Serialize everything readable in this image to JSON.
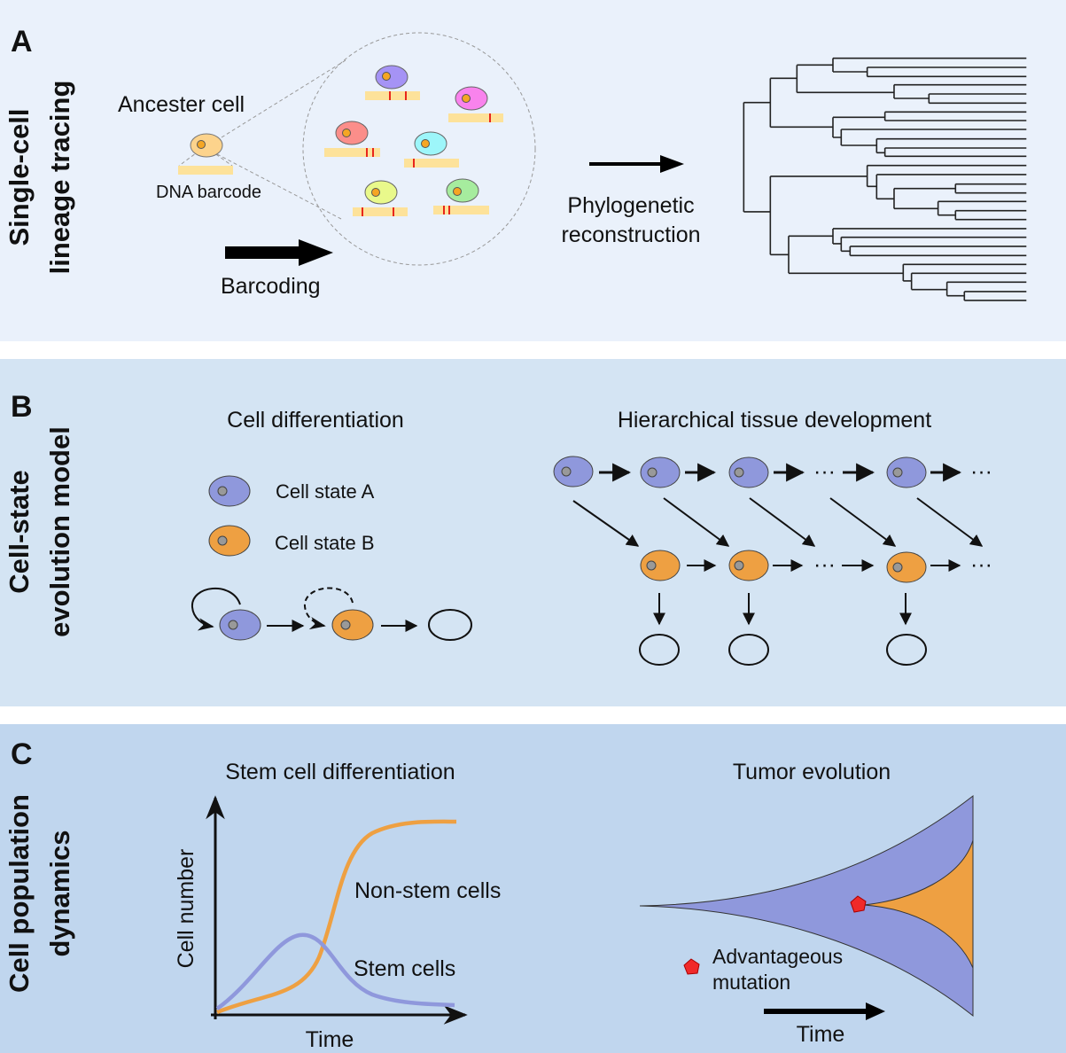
{
  "colors": {
    "panel_a_bg": "#eaf1fb",
    "panel_b_bg": "#d4e4f3",
    "panel_c_bg": "#c0d6ee",
    "cell_state_a": "#8f98dc",
    "cell_state_b": "#eea042",
    "mutation": "#f02a2a",
    "barcode": "#fde29a",
    "barcode_mark": "#e8261c"
  },
  "panel_a": {
    "letter": "A",
    "side_title_line1": "Single-cell",
    "side_title_line2": "lineage tracing",
    "ancestor_label": "Ancester cell",
    "barcode_label": "DNA barcode",
    "barcoding_label": "Barcoding",
    "phylo_line1": "Phylogenetic",
    "phylo_line2": "reconstruction"
  },
  "panel_b": {
    "letter": "B",
    "side_title_line1": "Cell-state",
    "side_title_line2": "evolution model",
    "left_title": "Cell differentiation",
    "legend_a": "Cell state A",
    "legend_b": "Cell state B",
    "right_title": "Hierarchical tissue development",
    "ellipsis": "···"
  },
  "panel_c": {
    "letter": "C",
    "side_title_line1": "Cell population",
    "side_title_line2": "dynamics",
    "left_title": "Stem cell differentiation",
    "y_axis_label": "Cell number",
    "x_axis_label": "Time",
    "non_stem_label": "Non-stem cells",
    "stem_label": "Stem cells",
    "right_title": "Tumor evolution",
    "mutation_label_line1": "Advantageous",
    "mutation_label_line2": "mutation",
    "time_label": "Time"
  }
}
